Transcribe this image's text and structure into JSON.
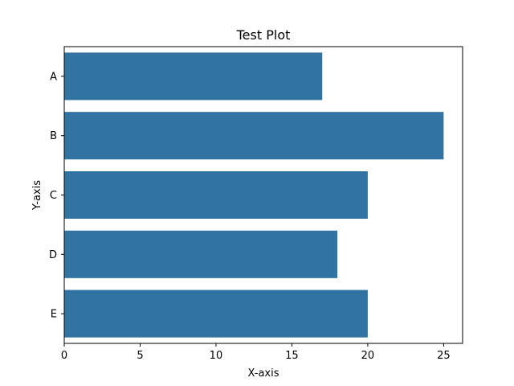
{
  "chart_data": {
    "type": "bar",
    "orientation": "horizontal",
    "title": "Test Plot",
    "xlabel": "X-axis",
    "ylabel": "Y-axis",
    "categories": [
      "A",
      "B",
      "C",
      "D",
      "E"
    ],
    "values": [
      17,
      25,
      20,
      18,
      20
    ],
    "xlim": [
      0,
      26.25
    ],
    "xticks": [
      0,
      5,
      10,
      15,
      20,
      25
    ],
    "bar_color": "#3274a1",
    "grid": false,
    "legend": "none"
  }
}
